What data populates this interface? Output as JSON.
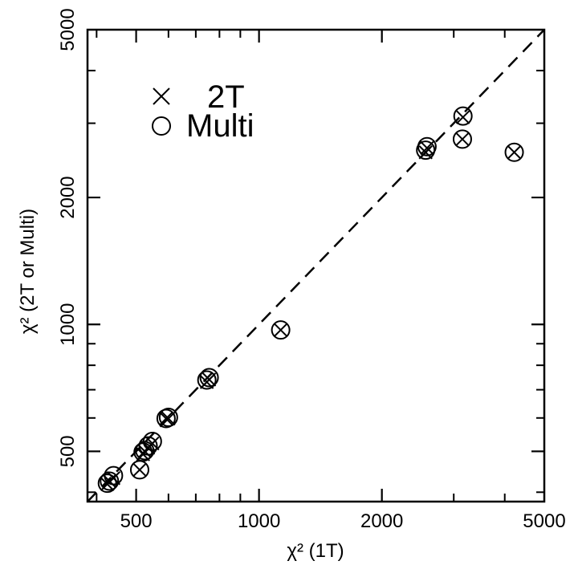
{
  "chart_data": {
    "type": "scatter",
    "title": "",
    "xlabel": "χ² (1T)",
    "ylabel": "χ² (2T or Multi)",
    "xscale": "log",
    "yscale": "log",
    "xlim": [
      380,
      5000
    ],
    "ylim": [
      380,
      5000
    ],
    "x_ticks": [
      500,
      1000,
      2000,
      5000
    ],
    "y_ticks": [
      500,
      1000,
      2000,
      5000
    ],
    "grid": false,
    "legend_placement": "top-left",
    "reference_line": {
      "style": "dashed",
      "slope": 1
    },
    "series": [
      {
        "name": "2T",
        "marker": "x",
        "x": [
          425,
          430,
          440,
          510,
          520,
          525,
          535,
          548,
          592,
          600,
          745,
          755,
          1130,
          2560,
          2580,
          3150,
          3160,
          4220
        ],
        "y": [
          418,
          425,
          432,
          452,
          492,
          500,
          510,
          522,
          598,
          598,
          730,
          740,
          970,
          2560,
          2620,
          2750,
          3100,
          2560
        ]
      },
      {
        "name": "Multi",
        "marker": "circle",
        "x": [
          425,
          430,
          440,
          510,
          520,
          525,
          535,
          548,
          592,
          600,
          745,
          755,
          1130,
          2560,
          2580,
          3150,
          3160,
          4220
        ],
        "y": [
          420,
          425,
          438,
          452,
          498,
          502,
          515,
          528,
          598,
          602,
          738,
          748,
          970,
          2590,
          2640,
          2750,
          3120,
          2560
        ]
      }
    ]
  },
  "legend": {
    "items": [
      {
        "marker": "x",
        "label": "2T"
      },
      {
        "marker": "circle",
        "label": "Multi"
      }
    ]
  },
  "colors": {
    "ink": "#000000",
    "background": "#ffffff"
  }
}
